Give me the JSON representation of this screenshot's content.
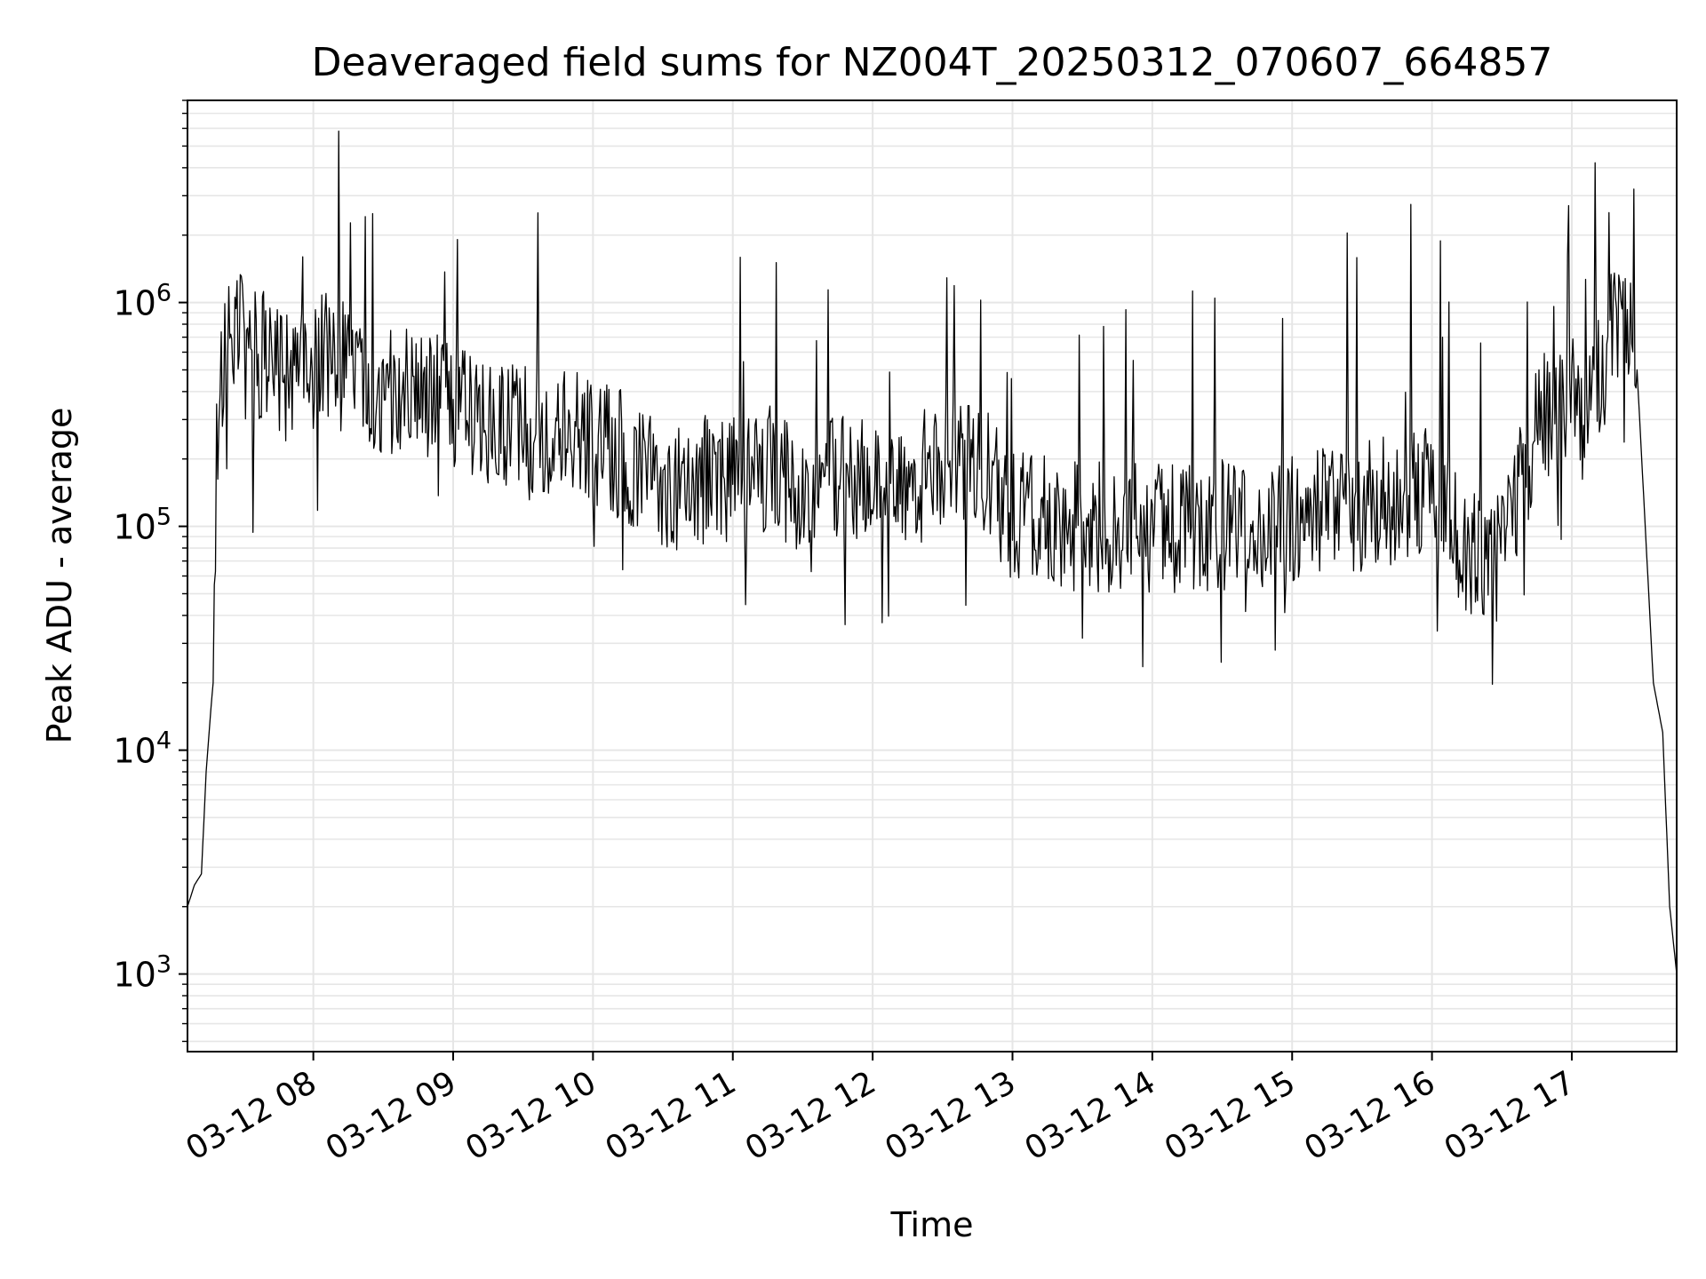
{
  "chart_data": {
    "type": "line",
    "title": "Deaveraged field sums for NZ004T_20250312_070607_664857",
    "xlabel": "Time",
    "ylabel": "Peak ADU - average",
    "yscale": "log",
    "ylim": [
      450,
      8000000
    ],
    "xlim": [
      "2025-03-12 07:06",
      "2025-03-12 17:45"
    ],
    "grid": true,
    "grid_minor_y": true,
    "line_color": "#000000",
    "grid_color": "#e6e6e6",
    "x_ticks": [
      {
        "value": "2025-03-12 08:00",
        "label": "03-12 08"
      },
      {
        "value": "2025-03-12 09:00",
        "label": "03-12 09"
      },
      {
        "value": "2025-03-12 10:00",
        "label": "03-12 10"
      },
      {
        "value": "2025-03-12 11:00",
        "label": "03-12 11"
      },
      {
        "value": "2025-03-12 12:00",
        "label": "03-12 12"
      },
      {
        "value": "2025-03-12 13:00",
        "label": "03-12 13"
      },
      {
        "value": "2025-03-12 14:00",
        "label": "03-12 14"
      },
      {
        "value": "2025-03-12 15:00",
        "label": "03-12 15"
      },
      {
        "value": "2025-03-12 16:00",
        "label": "03-12 16"
      },
      {
        "value": "2025-03-12 17:00",
        "label": "03-12 17"
      }
    ],
    "y_ticks": [
      {
        "value": 1000,
        "base": "10",
        "exp": "3"
      },
      {
        "value": 10000,
        "base": "10",
        "exp": "4"
      },
      {
        "value": 100000,
        "base": "10",
        "exp": "5"
      },
      {
        "value": 1000000,
        "base": "10",
        "exp": "6"
      }
    ],
    "series": [
      {
        "x": [
          "2025-03-12 07:06",
          "2025-03-12 07:09",
          "2025-03-12 07:12",
          "2025-03-12 07:14",
          "2025-03-12 07:16",
          "2025-03-12 07:17",
          "2025-03-12 07:18",
          "2025-03-12 07:20",
          "2025-03-12 07:22",
          "2025-03-12 07:25",
          "2025-03-12 07:30",
          "2025-03-12 07:40",
          "2025-03-12 07:50",
          "2025-03-12 08:00",
          "2025-03-12 08:15",
          "2025-03-12 08:30",
          "2025-03-12 08:45",
          "2025-03-12 09:00",
          "2025-03-12 09:15",
          "2025-03-12 09:30",
          "2025-03-12 09:45",
          "2025-03-12 10:00",
          "2025-03-12 10:15",
          "2025-03-12 10:30",
          "2025-03-12 10:45",
          "2025-03-12 11:00",
          "2025-03-12 11:15",
          "2025-03-12 11:30",
          "2025-03-12 11:45",
          "2025-03-12 12:00",
          "2025-03-12 12:15",
          "2025-03-12 12:30",
          "2025-03-12 12:45",
          "2025-03-12 13:00",
          "2025-03-12 13:30",
          "2025-03-12 14:00",
          "2025-03-12 14:30",
          "2025-03-12 15:00",
          "2025-03-12 15:30",
          "2025-03-12 16:00",
          "2025-03-12 16:15",
          "2025-03-12 16:30",
          "2025-03-12 16:45",
          "2025-03-12 17:00",
          "2025-03-12 17:10",
          "2025-03-12 17:15",
          "2025-03-12 17:22",
          "2025-03-12 17:28",
          "2025-03-12 17:35",
          "2025-03-12 17:39",
          "2025-03-12 17:42",
          "2025-03-12 17:45"
        ],
        "y": [
          2000,
          2500,
          2800,
          8000,
          15000,
          20000,
          150000,
          400000,
          600000,
          700000,
          700000,
          550000,
          450000,
          600000,
          500000,
          420000,
          380000,
          360000,
          300000,
          280000,
          260000,
          240000,
          200000,
          150000,
          160000,
          170000,
          180000,
          150000,
          160000,
          170000,
          160000,
          180000,
          200000,
          110000,
          100000,
          95000,
          100000,
          110000,
          120000,
          150000,
          80000,
          70000,
          300000,
          350000,
          400000,
          600000,
          1100000,
          500000,
          20000,
          12000,
          2000,
          1000
        ]
      }
    ]
  }
}
